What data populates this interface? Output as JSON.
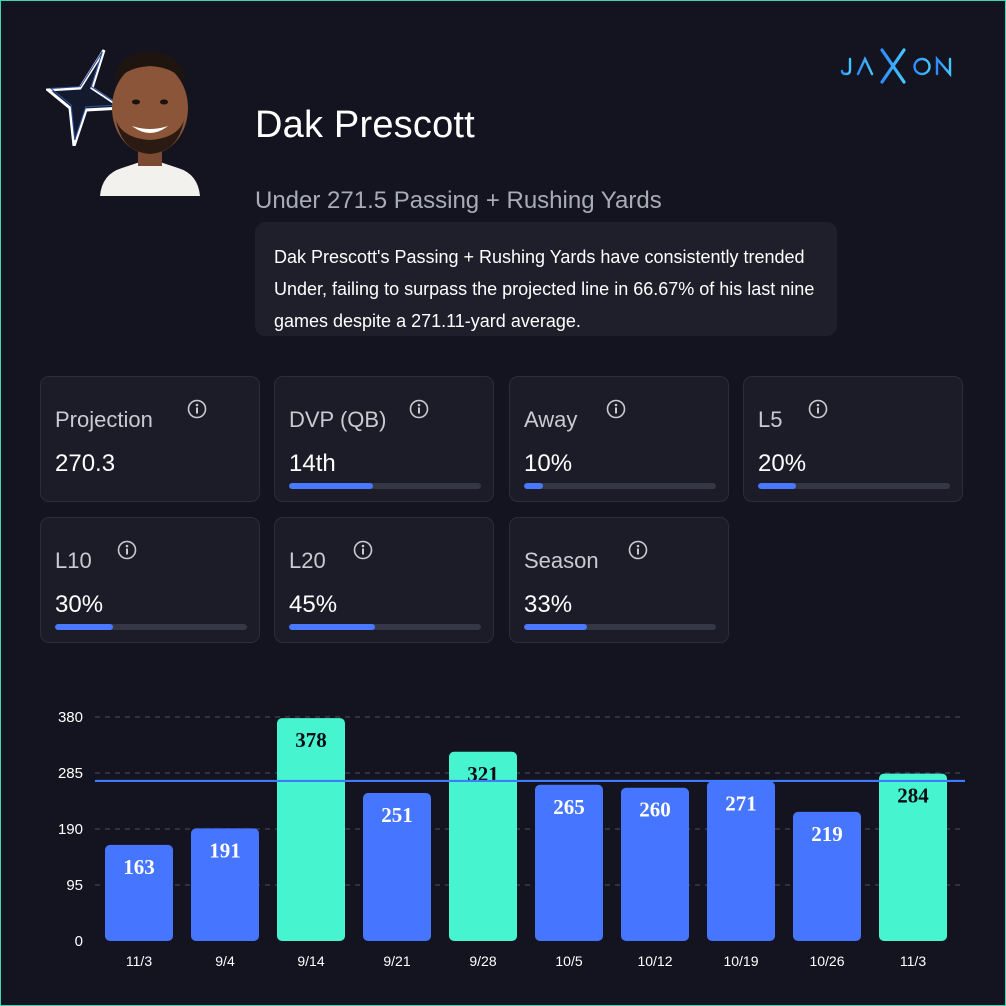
{
  "brand": {
    "logo_text": "JAXON",
    "team_logo": "star-icon",
    "accent": "#46f5d0",
    "bar_blue": "#4675ff",
    "line_blue": "#3f7bff"
  },
  "player": {
    "name": "Dak Prescott",
    "prop": "Under 271.5 Passing + Rushing Yards",
    "summary": "Dak Prescott's Passing + Rushing Yards have consistently trended Under, failing to surpass the projected line in 66.67% of his last nine games despite a 271.11-yard average."
  },
  "stats": [
    {
      "label": "Projection",
      "value": "270.3",
      "progress": null
    },
    {
      "label": "DVP (QB)",
      "value": "14th",
      "progress": 0.44
    },
    {
      "label": "Away",
      "value": "10%",
      "progress": 0.1
    },
    {
      "label": "L5",
      "value": "20%",
      "progress": 0.2
    },
    {
      "label": "L10",
      "value": "30%",
      "progress": 0.3
    },
    {
      "label": "L20",
      "value": "45%",
      "progress": 0.45
    },
    {
      "label": "Season",
      "value": "33%",
      "progress": 0.33
    }
  ],
  "chart_data": {
    "type": "bar",
    "title": "",
    "xlabel": "",
    "ylabel": "",
    "categories": [
      "11/3",
      "9/4",
      "9/14",
      "9/21",
      "9/28",
      "10/5",
      "10/12",
      "10/19",
      "10/26",
      "11/3"
    ],
    "values": [
      163,
      191,
      378,
      251,
      321,
      265,
      260,
      271,
      219,
      284
    ],
    "over_line": [
      false,
      false,
      true,
      false,
      true,
      false,
      false,
      false,
      false,
      true
    ],
    "line": 271.5,
    "yticks": [
      0,
      95,
      190,
      285,
      380
    ],
    "ylim": [
      0,
      380
    ],
    "grid": true
  }
}
